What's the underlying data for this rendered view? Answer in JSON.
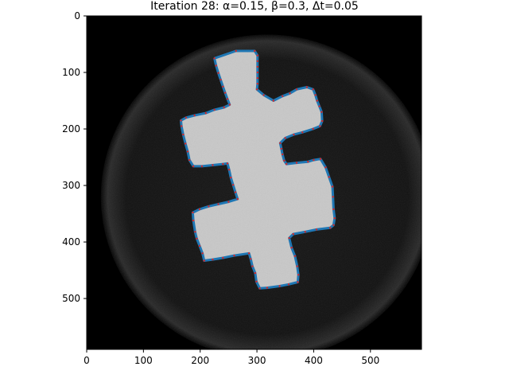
{
  "figure": {
    "title": "Iteration 28: α=0.15, β=0.3, Δt=0.05"
  },
  "image": {
    "description_type": "grayscale-ct-slice",
    "object_color": "#c8c8c8",
    "disk_color": "#141414",
    "background_color": "#000000"
  },
  "chart_data": {
    "type": "scatter",
    "title": "Iteration 28: α=0.15, β=0.3, Δt=0.05",
    "xlabel": "",
    "ylabel": "",
    "xlim": [
      0,
      590
    ],
    "ylim": [
      590,
      0
    ],
    "y_inverted": true,
    "x_ticks": [
      0,
      100,
      200,
      300,
      400,
      500
    ],
    "y_ticks": [
      0,
      100,
      200,
      300,
      400,
      500
    ],
    "snake_line_color": "#1f77b4",
    "snake_point_color": "#d62728",
    "series": [
      {
        "type": "line+points",
        "points": [
          [
            225,
            75
          ],
          [
            263,
            62
          ],
          [
            296,
            62
          ],
          [
            301,
            70
          ],
          [
            301,
            80
          ],
          [
            301,
            90
          ],
          [
            301,
            100
          ],
          [
            301,
            110
          ],
          [
            301,
            120
          ],
          [
            300,
            130
          ],
          [
            312,
            140
          ],
          [
            329,
            150
          ],
          [
            345,
            142
          ],
          [
            358,
            137
          ],
          [
            370,
            130
          ],
          [
            388,
            126
          ],
          [
            399,
            130
          ],
          [
            403,
            140
          ],
          [
            406,
            150
          ],
          [
            410,
            160
          ],
          [
            414,
            170
          ],
          [
            415,
            186
          ],
          [
            411,
            195
          ],
          [
            399,
            200
          ],
          [
            380,
            206
          ],
          [
            365,
            210
          ],
          [
            350,
            216
          ],
          [
            341,
            225
          ],
          [
            343,
            235
          ],
          [
            345,
            245
          ],
          [
            348,
            256
          ],
          [
            352,
            262
          ],
          [
            370,
            260
          ],
          [
            390,
            258
          ],
          [
            400,
            255
          ],
          [
            412,
            253
          ],
          [
            421,
            268
          ],
          [
            427,
            285
          ],
          [
            433,
            302
          ],
          [
            434,
            320
          ],
          [
            435,
            342
          ],
          [
            437,
            358
          ],
          [
            435,
            370
          ],
          [
            429,
            375
          ],
          [
            405,
            378
          ],
          [
            385,
            382
          ],
          [
            364,
            386
          ],
          [
            357,
            393
          ],
          [
            361,
            410
          ],
          [
            367,
            425
          ],
          [
            371,
            443
          ],
          [
            373,
            458
          ],
          [
            372,
            471
          ],
          [
            356,
            475
          ],
          [
            340,
            478
          ],
          [
            318,
            481
          ],
          [
            305,
            482
          ],
          [
            299,
            470
          ],
          [
            297,
            455
          ],
          [
            292,
            443
          ],
          [
            289,
            430
          ],
          [
            286,
            420
          ],
          [
            260,
            424
          ],
          [
            240,
            428
          ],
          [
            222,
            431
          ],
          [
            207,
            433
          ],
          [
            204,
            420
          ],
          [
            199,
            407
          ],
          [
            194,
            394
          ],
          [
            191,
            382
          ],
          [
            188,
            362
          ],
          [
            187,
            348
          ],
          [
            199,
            342
          ],
          [
            215,
            337
          ],
          [
            232,
            333
          ],
          [
            250,
            329
          ],
          [
            266,
            324
          ],
          [
            262,
            312
          ],
          [
            258,
            299
          ],
          [
            254,
            286
          ],
          [
            251,
            272
          ],
          [
            248,
            261
          ],
          [
            240,
            262
          ],
          [
            222,
            264
          ],
          [
            203,
            266
          ],
          [
            188,
            266
          ],
          [
            181,
            255
          ],
          [
            178,
            240
          ],
          [
            174,
            226
          ],
          [
            170,
            210
          ],
          [
            167,
            195
          ],
          [
            166,
            185
          ],
          [
            175,
            180
          ],
          [
            190,
            176
          ],
          [
            210,
            172
          ],
          [
            225,
            166
          ],
          [
            242,
            162
          ],
          [
            252,
            157
          ],
          [
            248,
            147
          ],
          [
            244,
            136
          ],
          [
            240,
            125
          ],
          [
            236,
            113
          ],
          [
            232,
            101
          ],
          [
            228,
            88
          ]
        ]
      }
    ]
  }
}
